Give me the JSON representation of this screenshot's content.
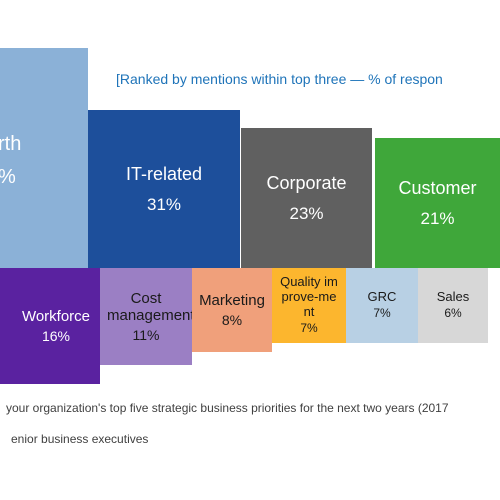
{
  "chart_data": {
    "type": "bar",
    "subtitle": "[Ranked by mentions within top three — % of respon",
    "categories": [
      "rth",
      "IT-related",
      "Corporate",
      "Customer",
      "Workforce",
      "Cost management",
      "Marketing",
      "Quality improve-ment",
      "GRC",
      "Sales"
    ],
    "series": [
      {
        "values": [
          "%",
          "31%",
          "23%",
          "21%",
          "16%",
          "11%",
          "8%",
          "7%",
          "7%",
          "6%"
        ]
      }
    ],
    "colors": [
      "#8bb1d7",
      "#1d4f9b",
      "#606060",
      "#3fa73a",
      "#5a22a0",
      "#9b7fc4",
      "#f0a07b",
      "#fcb62e",
      "#b8d0e4",
      "#d7d7d7"
    ],
    "footnote_question": "your organization's top five strategic business priorities for the next two years (2017",
    "footnote_base": "enior business executives"
  }
}
